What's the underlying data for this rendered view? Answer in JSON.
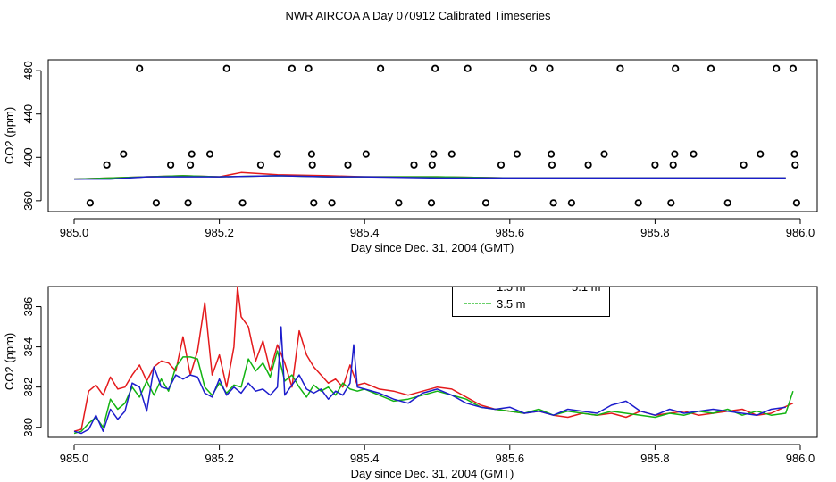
{
  "title": "NWR AIRCOA A  Day 070912  Calibrated Timeseries",
  "colors": {
    "red": "#e41a1c",
    "green": "#12b312",
    "blue": "#1c1ccc",
    "axis": "#000000"
  },
  "chart_data": [
    {
      "type": "line",
      "panel": "top",
      "xlabel": "Day since Dec. 31, 2004 (GMT)",
      "ylabel": "CO2 (ppm)",
      "xlim": [
        985.0,
        986.0
      ],
      "ylim": [
        350,
        490
      ],
      "xticks": [
        "985.0",
        "985.2",
        "985.4",
        "985.6",
        "985.8",
        "986.0"
      ],
      "yticks": [
        "360",
        "400",
        "440",
        "480"
      ],
      "series": [
        {
          "name": "1.5 m",
          "color": "#e41a1c",
          "x": [
            985.0,
            985.05,
            985.1,
            985.15,
            985.2,
            985.23,
            985.28,
            985.35,
            985.4,
            985.5,
            985.6,
            985.7,
            985.8,
            985.9,
            985.98
          ],
          "values": [
            380,
            381,
            382,
            383,
            382,
            386,
            384,
            383,
            382,
            382,
            381,
            381,
            381,
            381,
            381
          ]
        },
        {
          "name": "3.5 m",
          "color": "#12b312",
          "x": [
            985.0,
            985.05,
            985.1,
            985.15,
            985.2,
            985.28,
            985.35,
            985.4,
            985.5,
            985.6,
            985.7,
            985.8,
            985.9,
            985.98
          ],
          "values": [
            380,
            381,
            382,
            383,
            382,
            383,
            382,
            382,
            382,
            381,
            381,
            381,
            381,
            381
          ]
        },
        {
          "name": "5.1 m",
          "color": "#1c1ccc",
          "x": [
            985.0,
            985.05,
            985.1,
            985.15,
            985.2,
            985.28,
            985.35,
            985.4,
            985.5,
            985.6,
            985.7,
            985.8,
            985.9,
            985.98
          ],
          "values": [
            380,
            380,
            382,
            382,
            382,
            383,
            382,
            382,
            381,
            381,
            381,
            381,
            381,
            381
          ]
        }
      ],
      "flag_points": {
        "x": [
          985.022,
          985.045,
          985.068,
          985.09,
          985.113,
          985.133,
          985.157,
          985.16,
          985.162,
          985.187,
          985.21,
          985.232,
          985.257,
          985.28,
          985.3,
          985.323,
          985.327,
          985.328,
          985.33,
          985.355,
          985.377,
          985.402,
          985.422,
          985.447,
          985.468,
          985.492,
          985.493,
          985.495,
          985.497,
          985.52,
          985.542,
          985.567,
          985.588,
          985.61,
          985.632,
          985.655,
          985.657,
          985.658,
          985.66,
          985.685,
          985.708,
          985.73,
          985.752,
          985.777,
          985.8,
          985.822,
          985.825,
          985.827,
          985.828,
          985.853,
          985.877,
          985.9,
          985.922,
          985.945,
          985.967,
          985.99,
          985.992,
          985.993,
          985.995
        ],
        "values": [
          358,
          393,
          403,
          482,
          358,
          393,
          358,
          393,
          403,
          403,
          482,
          358,
          393,
          403,
          482,
          482,
          403,
          393,
          358,
          358,
          393,
          403,
          482,
          358,
          393,
          358,
          393,
          403,
          482,
          403,
          482,
          358,
          393,
          403,
          482,
          482,
          403,
          393,
          358,
          358,
          393,
          403,
          482,
          358,
          393,
          358,
          393,
          403,
          482,
          403,
          482,
          358,
          393,
          403,
          482,
          482,
          403,
          393,
          358
        ]
      }
    },
    {
      "type": "line",
      "panel": "bottom",
      "xlabel": "Day since Dec. 31, 2004 (GMT)",
      "ylabel": "CO2 (ppm)",
      "xlim": [
        985.0,
        986.0
      ],
      "ylim": [
        379.5,
        387.0
      ],
      "xticks": [
        "985.0",
        "985.2",
        "985.4",
        "985.6",
        "985.8",
        "986.0"
      ],
      "yticks": [
        "380",
        "382",
        "384",
        "386"
      ],
      "legend": {
        "position": "top-center",
        "entries": [
          "1.5 m",
          "5.1 m",
          "3.5 m"
        ]
      },
      "series": [
        {
          "name": "1.5 m",
          "color": "#e41a1c",
          "x": [
            985.0,
            985.01,
            985.02,
            985.03,
            985.04,
            985.05,
            985.06,
            985.07,
            985.08,
            985.09,
            985.1,
            985.11,
            985.12,
            985.13,
            985.14,
            985.15,
            985.16,
            985.17,
            985.18,
            985.19,
            985.2,
            985.21,
            985.22,
            985.225,
            985.23,
            985.24,
            985.25,
            985.26,
            985.27,
            985.28,
            985.29,
            985.3,
            985.31,
            985.32,
            985.33,
            985.34,
            985.35,
            985.36,
            985.37,
            985.38,
            985.39,
            985.4,
            985.42,
            985.44,
            985.46,
            985.48,
            985.5,
            985.52,
            985.54,
            985.56,
            985.58,
            985.6,
            985.62,
            985.64,
            985.66,
            985.68,
            985.7,
            985.72,
            985.74,
            985.76,
            985.78,
            985.8,
            985.82,
            985.84,
            985.86,
            985.88,
            985.9,
            985.92,
            985.94,
            985.96,
            985.99
          ],
          "values": [
            379.8,
            379.9,
            381.8,
            382.1,
            381.6,
            382.5,
            381.9,
            382.0,
            382.6,
            383.1,
            382.3,
            383.0,
            383.3,
            383.2,
            382.8,
            384.5,
            382.6,
            383.8,
            386.2,
            382.6,
            383.6,
            382.0,
            384.0,
            387.0,
            385.5,
            385.0,
            383.3,
            384.3,
            382.8,
            384.1,
            383.2,
            382.0,
            384.8,
            383.6,
            383.0,
            382.6,
            382.2,
            382.4,
            382.0,
            383.1,
            382.1,
            382.2,
            381.9,
            381.8,
            381.6,
            381.8,
            382.0,
            381.9,
            381.5,
            381.1,
            380.9,
            380.8,
            380.7,
            380.8,
            380.6,
            380.5,
            380.7,
            380.6,
            380.7,
            380.5,
            380.8,
            380.6,
            380.7,
            380.8,
            380.6,
            380.7,
            380.8,
            380.9,
            380.6,
            380.7,
            381.2
          ]
        },
        {
          "name": "3.5 m",
          "color": "#12b312",
          "x": [
            985.0,
            985.01,
            985.02,
            985.03,
            985.04,
            985.05,
            985.06,
            985.07,
            985.08,
            985.09,
            985.1,
            985.11,
            985.12,
            985.13,
            985.14,
            985.15,
            985.16,
            985.17,
            985.18,
            985.19,
            985.2,
            985.21,
            985.22,
            985.23,
            985.24,
            985.25,
            985.26,
            985.27,
            985.28,
            985.29,
            985.3,
            985.31,
            985.32,
            985.33,
            985.34,
            985.35,
            985.36,
            985.37,
            985.38,
            985.39,
            985.4,
            985.42,
            985.44,
            985.46,
            985.48,
            985.5,
            985.52,
            985.54,
            985.56,
            985.58,
            985.6,
            985.62,
            985.64,
            985.66,
            985.68,
            985.7,
            985.72,
            985.74,
            985.76,
            985.78,
            985.8,
            985.82,
            985.84,
            985.86,
            985.88,
            985.9,
            985.92,
            985.94,
            985.96,
            985.98,
            985.99
          ],
          "values": [
            379.7,
            379.8,
            380.2,
            380.5,
            380.0,
            381.4,
            380.9,
            381.2,
            382.0,
            381.5,
            382.3,
            381.6,
            382.4,
            381.8,
            383.0,
            383.5,
            383.5,
            383.4,
            382.0,
            381.6,
            382.2,
            381.7,
            382.1,
            382.0,
            383.4,
            382.8,
            383.2,
            382.5,
            383.8,
            382.3,
            382.6,
            382.0,
            381.5,
            382.1,
            381.8,
            382.0,
            381.6,
            382.2,
            381.9,
            381.8,
            381.9,
            381.6,
            381.3,
            381.4,
            381.6,
            381.8,
            381.6,
            381.4,
            381.0,
            380.9,
            380.8,
            380.7,
            380.9,
            380.6,
            380.8,
            380.7,
            380.6,
            380.8,
            380.7,
            380.6,
            380.5,
            380.7,
            380.6,
            380.8,
            380.7,
            380.9,
            380.6,
            380.8,
            380.6,
            380.7,
            381.8
          ]
        },
        {
          "name": "5.1 m",
          "color": "#1c1ccc",
          "x": [
            985.0,
            985.01,
            985.02,
            985.03,
            985.04,
            985.05,
            985.06,
            985.07,
            985.08,
            985.09,
            985.1,
            985.11,
            985.12,
            985.13,
            985.14,
            985.15,
            985.16,
            985.17,
            985.18,
            985.19,
            985.2,
            985.21,
            985.22,
            985.23,
            985.24,
            985.25,
            985.26,
            985.27,
            985.28,
            985.285,
            985.29,
            985.3,
            985.31,
            985.32,
            985.33,
            985.34,
            985.35,
            985.36,
            985.37,
            985.38,
            985.385,
            985.39,
            985.4,
            985.42,
            985.44,
            985.46,
            985.48,
            985.5,
            985.52,
            985.54,
            985.56,
            985.58,
            985.6,
            985.62,
            985.64,
            985.66,
            985.68,
            985.7,
            985.72,
            985.74,
            985.76,
            985.78,
            985.8,
            985.82,
            985.84,
            985.86,
            985.88,
            985.9,
            985.92,
            985.94,
            985.96,
            985.98
          ],
          "values": [
            379.8,
            379.7,
            379.9,
            380.6,
            379.8,
            380.9,
            380.4,
            380.8,
            382.2,
            382.0,
            380.8,
            383.0,
            382.0,
            381.9,
            382.6,
            382.4,
            382.6,
            382.5,
            381.7,
            381.5,
            382.4,
            381.6,
            382.0,
            381.7,
            382.2,
            381.8,
            381.9,
            381.6,
            382.0,
            385.0,
            381.6,
            382.1,
            382.6,
            381.9,
            381.7,
            381.9,
            381.4,
            381.8,
            381.6,
            382.2,
            384.1,
            382.0,
            381.9,
            381.7,
            381.4,
            381.2,
            381.7,
            381.9,
            381.6,
            381.2,
            381.0,
            380.9,
            381.0,
            380.7,
            380.8,
            380.6,
            380.9,
            380.8,
            380.7,
            381.1,
            381.3,
            380.8,
            380.6,
            380.9,
            380.7,
            380.8,
            380.9,
            380.8,
            380.7,
            380.6,
            380.9,
            381.0
          ]
        }
      ]
    }
  ]
}
